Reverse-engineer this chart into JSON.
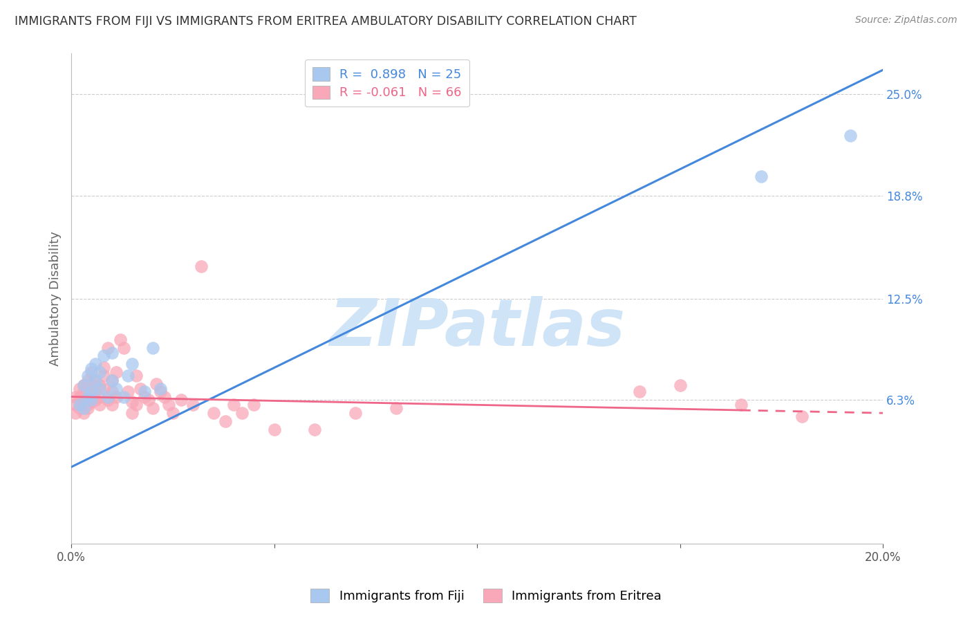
{
  "title": "IMMIGRANTS FROM FIJI VS IMMIGRANTS FROM ERITREA AMBULATORY DISABILITY CORRELATION CHART",
  "source": "Source: ZipAtlas.com",
  "ylabel": "Ambulatory Disability",
  "xlim": [
    0.0,
    0.2
  ],
  "ylim": [
    -0.025,
    0.275
  ],
  "xticks": [
    0.0,
    0.05,
    0.1,
    0.15,
    0.2
  ],
  "xtick_labels": [
    "0.0%",
    "",
    "",
    "",
    "20.0%"
  ],
  "yticks_right": [
    0.063,
    0.125,
    0.188,
    0.25
  ],
  "ytick_labels_right": [
    "6.3%",
    "12.5%",
    "18.8%",
    "25.0%"
  ],
  "fiji_R": 0.898,
  "fiji_N": 25,
  "eritrea_R": -0.061,
  "eritrea_N": 66,
  "fiji_color": "#A8C8F0",
  "eritrea_color": "#F8A8B8",
  "fiji_line_color": "#4488DD",
  "eritrea_line_color": "#EE6688",
  "watermark": "ZIPatlas",
  "watermark_color": "#D0E4F8",
  "fiji_x": [
    0.002,
    0.003,
    0.003,
    0.004,
    0.004,
    0.005,
    0.005,
    0.005,
    0.006,
    0.006,
    0.007,
    0.007,
    0.008,
    0.009,
    0.01,
    0.01,
    0.011,
    0.013,
    0.014,
    0.015,
    0.018,
    0.02,
    0.022,
    0.17,
    0.192
  ],
  "fiji_y": [
    0.06,
    0.058,
    0.072,
    0.065,
    0.078,
    0.063,
    0.068,
    0.082,
    0.075,
    0.085,
    0.07,
    0.08,
    0.09,
    0.065,
    0.075,
    0.092,
    0.07,
    0.065,
    0.078,
    0.085,
    0.068,
    0.095,
    0.07,
    0.2,
    0.225
  ],
  "eritrea_x": [
    0.001,
    0.001,
    0.001,
    0.002,
    0.002,
    0.002,
    0.003,
    0.003,
    0.003,
    0.003,
    0.004,
    0.004,
    0.004,
    0.004,
    0.005,
    0.005,
    0.005,
    0.005,
    0.006,
    0.006,
    0.006,
    0.007,
    0.007,
    0.007,
    0.008,
    0.008,
    0.008,
    0.009,
    0.009,
    0.01,
    0.01,
    0.01,
    0.011,
    0.011,
    0.012,
    0.013,
    0.014,
    0.015,
    0.015,
    0.016,
    0.016,
    0.017,
    0.018,
    0.019,
    0.02,
    0.021,
    0.022,
    0.023,
    0.024,
    0.025,
    0.027,
    0.03,
    0.032,
    0.035,
    0.038,
    0.04,
    0.042,
    0.045,
    0.05,
    0.06,
    0.07,
    0.08,
    0.14,
    0.15,
    0.165,
    0.18
  ],
  "eritrea_y": [
    0.06,
    0.055,
    0.065,
    0.065,
    0.058,
    0.07,
    0.063,
    0.068,
    0.055,
    0.072,
    0.06,
    0.065,
    0.058,
    0.075,
    0.062,
    0.065,
    0.073,
    0.08,
    0.075,
    0.063,
    0.068,
    0.072,
    0.065,
    0.06,
    0.07,
    0.078,
    0.083,
    0.063,
    0.095,
    0.06,
    0.068,
    0.075,
    0.065,
    0.08,
    0.1,
    0.095,
    0.068,
    0.055,
    0.062,
    0.078,
    0.06,
    0.07,
    0.065,
    0.063,
    0.058,
    0.073,
    0.068,
    0.065,
    0.06,
    0.055,
    0.063,
    0.06,
    0.145,
    0.055,
    0.05,
    0.06,
    0.055,
    0.06,
    0.045,
    0.045,
    0.055,
    0.058,
    0.068,
    0.072,
    0.06,
    0.053
  ],
  "fiji_line_x0": 0.0,
  "fiji_line_y0": 0.022,
  "fiji_line_x1": 0.2,
  "fiji_line_y1": 0.265,
  "eritrea_line_x0": 0.0,
  "eritrea_line_y0": 0.065,
  "eritrea_line_x1": 0.2,
  "eritrea_line_y1": 0.055
}
